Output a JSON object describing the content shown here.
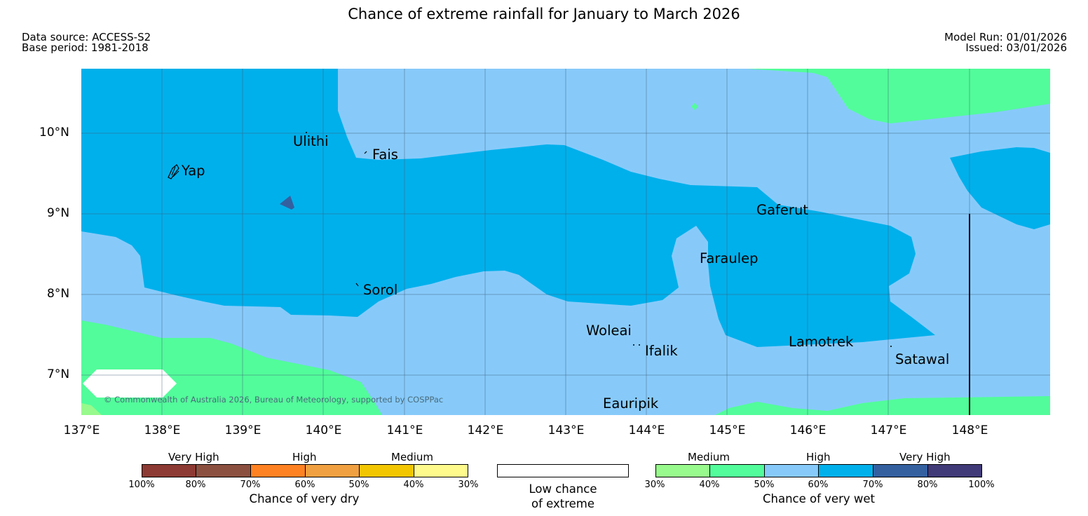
{
  "header": {
    "title": "Chance of extreme rainfall for January to March 2026",
    "data_source": "Data source: ACCESS-S2",
    "base_period": "Base period: 1981-2018",
    "model_run": "Model Run: 01/01/2026",
    "issued": "Issued: 03/01/2026"
  },
  "map": {
    "lat_labels": [
      "10°N",
      "9°N",
      "8°N",
      "7°N"
    ],
    "lon_labels": [
      "137°E",
      "138°E",
      "139°E",
      "140°E",
      "141°E",
      "142°E",
      "143°E",
      "144°E",
      "145°E",
      "146°E",
      "147°E",
      "148°E"
    ],
    "places": {
      "yap": "Yap",
      "ulithi": "Ulithi",
      "fais": "Fais",
      "sorol": "Sorol",
      "gaferut": "Gaferut",
      "faraulep": "Faraulep",
      "woleai": "Woleai",
      "ifalik": "Ifalik",
      "lamotrek": "Lamotrek",
      "satawal": "Satawal",
      "eauripik": "Eauripik"
    },
    "copyright": "© Commonwealth of Australia 2026, Bureau of Meteorology, supported by COSPPac",
    "colors": {
      "medium_wet": "#52fc9a",
      "high_wet_50_60": "#87cafa",
      "high_wet_60_70": "#00b0eb",
      "very_high_wet_70_80": "#3460a0",
      "low_chance": "#ffffff",
      "medium_wet_30_40": "#98f98c"
    }
  },
  "legend": {
    "dry": {
      "categories": [
        "Very High",
        "High",
        "Medium"
      ],
      "ticks": [
        "100%",
        "80%",
        "70%",
        "60%",
        "50%",
        "40%",
        "30%"
      ],
      "caption": "Chance of very dry",
      "colors": [
        "#8c3a33",
        "#8c5040",
        "#ff8222",
        "#f0a040",
        "#f2c600",
        "#fffa8c"
      ]
    },
    "low": {
      "caption_line1": "Low chance",
      "caption_line2": "of extreme"
    },
    "wet": {
      "categories": [
        "Medium",
        "High",
        "Very High"
      ],
      "ticks": [
        "30%",
        "40%",
        "50%",
        "60%",
        "70%",
        "80%",
        "100%"
      ],
      "caption": "Chance of very wet",
      "colors": [
        "#98f98c",
        "#52fc9a",
        "#87cafa",
        "#00b0eb",
        "#3460a0",
        "#403a78"
      ]
    }
  }
}
